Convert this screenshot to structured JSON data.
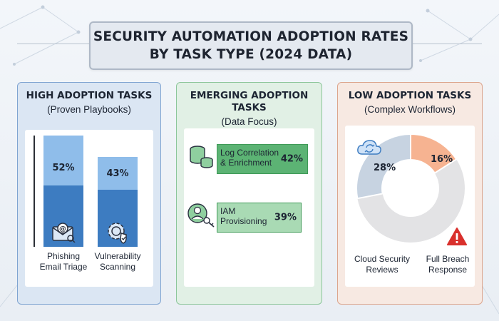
{
  "title": "SECURITY AUTOMATION ADOPTION RATES\nBY TASK TYPE (2024 DATA)",
  "panels": {
    "high": {
      "heading": "HIGH ADOPTION TASKS",
      "subheading": "(Proven Playbooks)"
    },
    "emerging": {
      "heading": "EMERGING ADOPTION\nTASKS",
      "subheading": "(Data Focus)"
    },
    "low": {
      "heading": "LOW ADOPTION TASKS",
      "subheading": "(Complex Workflows)"
    }
  },
  "colors": {
    "bar_light": "#8fbdea",
    "bar_dark": "#3d7cc1",
    "green_fill": "#5cb374",
    "green_light": "#a9dab4",
    "donut_blue": "#c7d3e1",
    "donut_orange": "#f6b391",
    "donut_gray": "#e3e3e5",
    "warning": "#d9302c"
  },
  "chart_data": [
    {
      "type": "bar",
      "title": "HIGH ADOPTION TASKS",
      "categories": [
        "Phishing\nEmail Triage",
        "Vulnerability\nScanning"
      ],
      "values": [
        52,
        43
      ],
      "value_labels": [
        "52%",
        "43%"
      ],
      "icons": [
        "email-at-icon",
        "gear-shield-icon"
      ],
      "ylim": [
        0,
        60
      ]
    },
    {
      "type": "bar",
      "orientation": "horizontal",
      "title": "EMERGING ADOPTION TASKS",
      "categories": [
        "Log Correlation\n& Enrichment",
        "IAM\nProvisioning"
      ],
      "values": [
        42,
        39
      ],
      "value_labels": [
        "42%",
        "39%"
      ],
      "icons": [
        "database-icon",
        "user-key-icon"
      ],
      "xlim": [
        0,
        45
      ]
    },
    {
      "type": "pie",
      "title": "LOW ADOPTION TASKS",
      "categories": [
        "Cloud Security\nReviews",
        "Full Breach\nResponse"
      ],
      "values": [
        28,
        16
      ],
      "value_labels": [
        "28%",
        "16%"
      ],
      "icons": [
        "cloud-sync-icon",
        "warning-icon"
      ]
    }
  ]
}
